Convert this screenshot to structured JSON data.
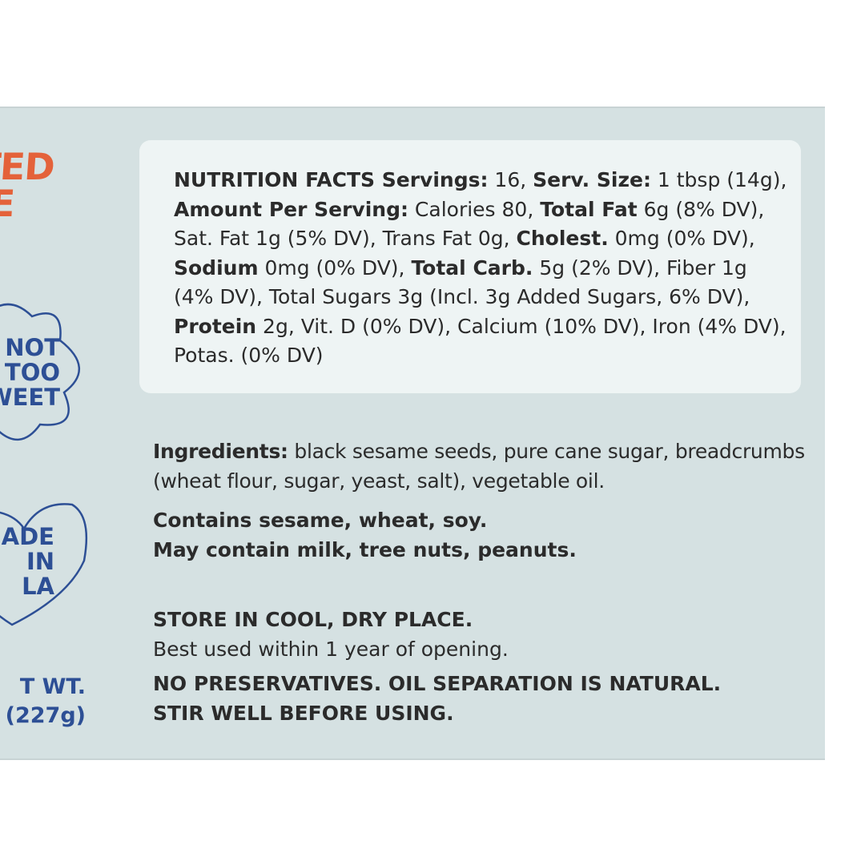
{
  "brand": {
    "logo_line1": "OTED",
    "logo_line2": "ARE",
    "logo_color": "#e4623a"
  },
  "badges": {
    "not_too_sweet": [
      "NOT",
      "TOO",
      "SWEET"
    ],
    "made_in_la": [
      "MADE",
      "IN",
      "LA"
    ],
    "color": "#2d4f95"
  },
  "net_wt": {
    "line1": "T WT.",
    "line2": "(227g)"
  },
  "nutrition": {
    "heading": "NUTRITION FACTS",
    "parts": [
      {
        "b": " Servings:",
        "t": " 16, "
      },
      {
        "b": "Serv. Size:",
        "t": " 1 tbsp (14g), "
      },
      {
        "b": "Amount Per Serving:",
        "t": " Calories 80, "
      },
      {
        "b": "Total Fat",
        "t": " 6g (8% DV), Sat. Fat 1g (5% DV), Trans Fat 0g, "
      },
      {
        "b": "Cholest.",
        "t": " 0mg (0% DV), "
      },
      {
        "b": "Sodium",
        "t": " 0mg (0% DV), "
      },
      {
        "b": "Total Carb.",
        "t": " 5g (2% DV), Fiber 1g (4% DV), Total Sugars 3g (Incl. 3g Added Sugars, 6% DV), "
      },
      {
        "b": "Protein",
        "t": " 2g, Vit. D (0% DV), Calcium (10% DV), Iron (4% DV), Potas. (0% DV)"
      }
    ]
  },
  "ingredients": {
    "label": "Ingredients:",
    "text": " black sesame seeds, pure cane sugar, breadcrumbs (wheat flour, sugar, yeast, salt), vegetable oil."
  },
  "allergens": {
    "line1": "Contains sesame, wheat, soy.",
    "line2": "May contain milk, tree nuts, peanuts."
  },
  "storage": {
    "heading": "STORE IN COOL, DRY PLACE.",
    "note": "Best used within 1 year of opening.",
    "warning1": "NO PRESERVATIVES. OIL SEPARATION IS NATURAL.",
    "warning2": "STIR WELL BEFORE USING."
  }
}
